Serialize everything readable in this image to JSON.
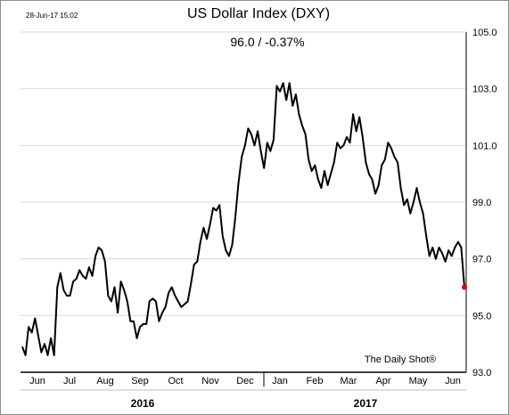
{
  "header": {
    "timestamp": "28-Jun-17 15:02",
    "title": "US Dollar Index (DXY)",
    "subtitle": "96.0  /  -0.37%"
  },
  "watermark": "The Daily Shot®",
  "chart_data": {
    "type": "line",
    "title": "US Dollar Index (DXY)",
    "xlabel": "",
    "ylabel": "",
    "ylim": [
      93.0,
      105.0
    ],
    "y_ticks": [
      "105.0",
      "103.0",
      "101.0",
      "99.0",
      "97.0",
      "95.0",
      "93.0"
    ],
    "y_tick_values": [
      105,
      103,
      101,
      99,
      97,
      95,
      93
    ],
    "x_tick_labels": [
      "Jun",
      "Jul",
      "Aug",
      "Sep",
      "Oct",
      "Nov",
      "Dec",
      "Jan",
      "Feb",
      "Mar",
      "Apr",
      "May",
      "Jun"
    ],
    "year_labels": [
      "2016",
      "2017"
    ],
    "grid": "horizontal",
    "series": [
      {
        "values": [
          93.9,
          93.6,
          94.6,
          94.4,
          94.9,
          94.3,
          93.7,
          94.0,
          93.6,
          94.2,
          93.6,
          96.0,
          96.5,
          95.9,
          95.7,
          95.7,
          96.2,
          96.3,
          96.6,
          96.4,
          96.3,
          96.7,
          96.4,
          97.1,
          97.4,
          97.3,
          96.9,
          95.7,
          95.5,
          96.0,
          95.1,
          96.2,
          95.9,
          95.5,
          94.8,
          94.8,
          94.2,
          94.6,
          94.7,
          94.7,
          95.5,
          95.6,
          95.5,
          94.8,
          95.1,
          95.3,
          95.8,
          96.0,
          95.7,
          95.5,
          95.3,
          95.4,
          95.5,
          96.1,
          96.8,
          96.9,
          97.6,
          98.1,
          97.7,
          98.2,
          98.8,
          98.7,
          98.9,
          97.8,
          97.3,
          97.1,
          97.5,
          98.5,
          99.7,
          100.6,
          101.0,
          101.6,
          101.4,
          101.0,
          101.5,
          100.8,
          100.2,
          101.1,
          100.8,
          101.2,
          103.1,
          102.9,
          103.2,
          102.6,
          103.2,
          102.4,
          102.8,
          102.1,
          101.7,
          101.4,
          100.5,
          100.1,
          100.3,
          99.8,
          99.5,
          100.1,
          99.6,
          100.0,
          100.4,
          101.1,
          100.9,
          101.0,
          101.3,
          101.1,
          102.1,
          101.5,
          102.0,
          101.3,
          100.4,
          100.0,
          99.8,
          99.3,
          99.6,
          100.3,
          100.5,
          101.1,
          100.9,
          100.6,
          100.4,
          99.5,
          98.9,
          99.1,
          98.6,
          99.0,
          99.5,
          99.0,
          98.6,
          97.8,
          97.1,
          97.4,
          97.0,
          97.4,
          97.2,
          96.9,
          97.3,
          97.1,
          97.4,
          97.6,
          97.4,
          96.0
        ]
      }
    ],
    "last_value": 96.0,
    "last_change": "-0.37%"
  }
}
